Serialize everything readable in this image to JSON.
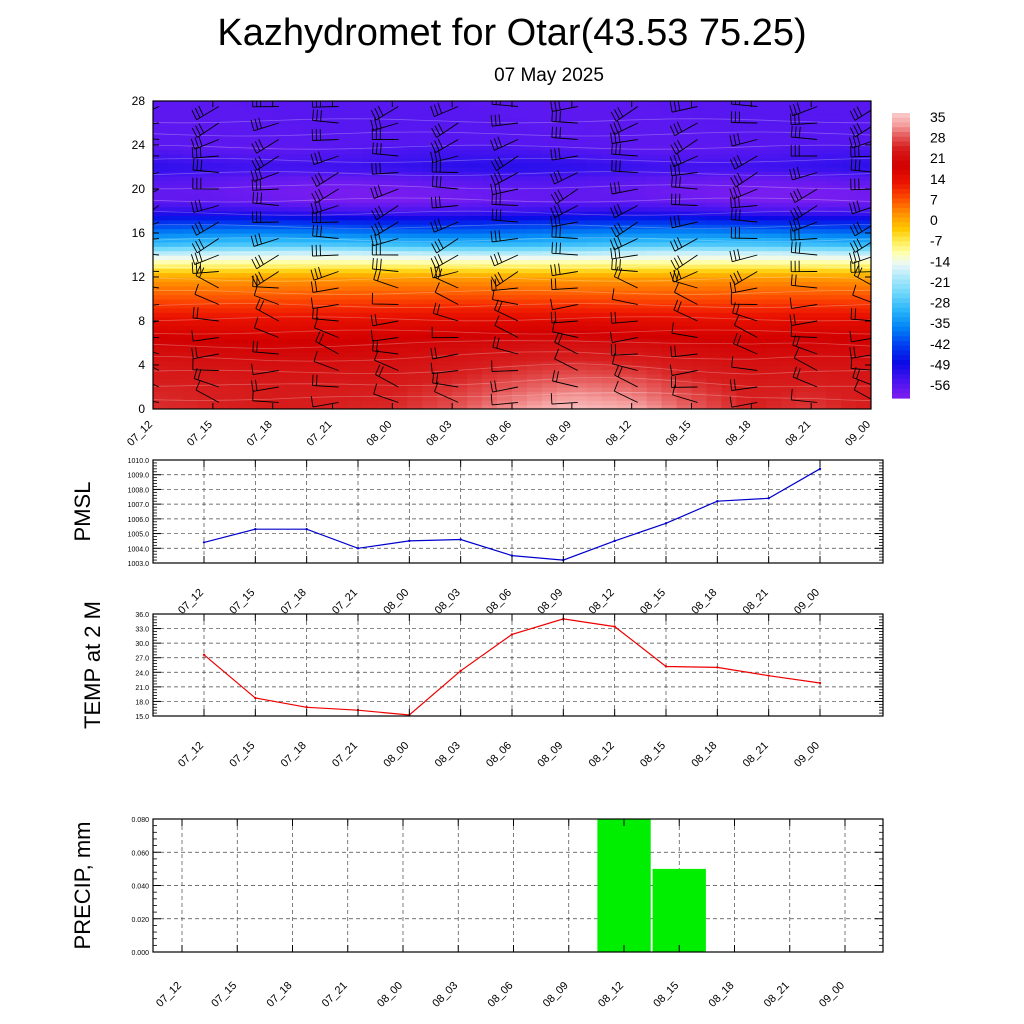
{
  "title": "Kazhydromet for Otar(43.53 75.25)",
  "subtitle": "07 May 2025",
  "chart_data": [
    {
      "type": "heatmap",
      "x_ticks": [
        "07_12",
        "07_15",
        "07_18",
        "07_21",
        "08_00",
        "08_03",
        "08_06",
        "08_09",
        "08_12",
        "08_15",
        "08_18",
        "08_21",
        "09_00"
      ],
      "y_ticks": [
        "0",
        "4",
        "8",
        "12",
        "16",
        "20",
        "24",
        "28"
      ],
      "ylim": [
        0,
        28
      ],
      "colorbar": {
        "labels": [
          "35",
          "28",
          "21",
          "14",
          "7",
          "0",
          "-7",
          "-14",
          "-21",
          "-28",
          "-35",
          "-42",
          "-49",
          "-56"
        ],
        "range": [
          -60,
          38
        ]
      },
      "layer_temps": [
        {
          "y": 0,
          "t": 27
        },
        {
          "y": 2,
          "t": 26
        },
        {
          "y": 4,
          "t": 24
        },
        {
          "y": 6,
          "t": 21
        },
        {
          "y": 8,
          "t": 16
        },
        {
          "y": 10,
          "t": 9
        },
        {
          "y": 12,
          "t": 2
        },
        {
          "y": 13,
          "t": -7
        },
        {
          "y": 14,
          "t": -15
        },
        {
          "y": 15,
          "t": -28
        },
        {
          "y": 16,
          "t": -36
        },
        {
          "y": 17,
          "t": -44
        },
        {
          "y": 18,
          "t": -53
        },
        {
          "y": 19,
          "t": -58
        },
        {
          "y": 20,
          "t": -58
        },
        {
          "y": 21,
          "t": -56
        },
        {
          "y": 22,
          "t": -52
        },
        {
          "y": 23,
          "t": -54
        },
        {
          "y": 24,
          "t": -56
        },
        {
          "y": 28,
          "t": -56
        }
      ],
      "surface_anomaly": [
        0,
        -1,
        -2,
        -1,
        0,
        3,
        7,
        10,
        8,
        3,
        -1,
        1,
        -1
      ],
      "grid": false
    },
    {
      "type": "line",
      "ylabel": "PMSL",
      "x": [
        "07_12",
        "07_15",
        "07_18",
        "07_21",
        "08_00",
        "08_03",
        "08_06",
        "08_09",
        "08_12",
        "08_15",
        "08_18",
        "08_21",
        "09_00"
      ],
      "values": [
        1004.4,
        1005.3,
        1005.3,
        1004.0,
        1004.5,
        1004.6,
        1003.5,
        1003.2,
        1004.5,
        1005.7,
        1007.2,
        1007.4,
        1009.4
      ],
      "y_ticks": [
        "1003.0",
        "1004.0",
        "1005.0",
        "1006.0",
        "1007.0",
        "1008.0",
        "1009.0",
        "1010.0"
      ],
      "ylim": [
        1003,
        1010
      ],
      "color": "#0000cc",
      "grid": true
    },
    {
      "type": "line",
      "ylabel": "TEMP at 2 M",
      "x": [
        "07_12",
        "07_15",
        "07_18",
        "07_21",
        "08_00",
        "08_03",
        "08_06",
        "08_09",
        "08_12",
        "08_15",
        "08_18",
        "08_21",
        "09_00"
      ],
      "values": [
        27.6,
        18.7,
        16.8,
        16.2,
        15.2,
        24.3,
        31.8,
        35.0,
        33.4,
        25.2,
        25.0,
        23.3,
        21.8
      ],
      "y_ticks": [
        "15.0",
        "18.0",
        "21.0",
        "24.0",
        "27.0",
        "30.0",
        "33.0",
        "36.0"
      ],
      "ylim": [
        15,
        36
      ],
      "color": "#ee0000",
      "grid": true
    },
    {
      "type": "bar",
      "ylabel": "PRECIP, mm",
      "x": [
        "07_12",
        "07_15",
        "07_18",
        "07_21",
        "08_00",
        "08_03",
        "08_06",
        "08_09",
        "08_12",
        "08_15",
        "08_18",
        "08_21",
        "09_00"
      ],
      "values": [
        0,
        0,
        0,
        0,
        0,
        0,
        0,
        0,
        0.08,
        0.05,
        0,
        0,
        0
      ],
      "y_ticks": [
        "0.000",
        "0.020",
        "0.040",
        "0.060",
        "0.080"
      ],
      "ylim": [
        0,
        0.08
      ],
      "color": "#00ee00",
      "grid": true
    }
  ]
}
